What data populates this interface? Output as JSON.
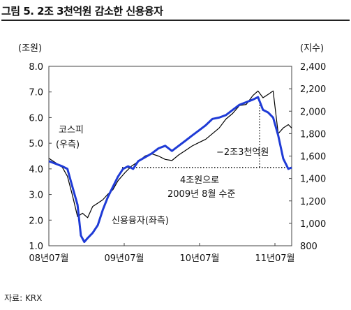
{
  "title": "그림 5. 2조 3천억원 감소한 신용융자",
  "source": "자료: KRX",
  "chart_data": {
    "type": "line",
    "left_axis": {
      "label": "(조원)",
      "ticks": [
        "8.0",
        "7.0",
        "6.0",
        "5.0",
        "4.0",
        "3.0",
        "2.0",
        "1.0"
      ],
      "ylim": [
        1.0,
        8.0
      ]
    },
    "right_axis": {
      "label": "(지수)",
      "ticks": [
        "2,400",
        "2,200",
        "2,000",
        "1,800",
        "1,600",
        "1,400",
        "1,200",
        "1,000",
        "800"
      ],
      "ylim": [
        800,
        2400
      ]
    },
    "x_ticks": [
      "08년07월",
      "09년07월",
      "10년07월",
      "11년07월"
    ],
    "series": [
      {
        "name": "코스피 (우축)",
        "axis": "right",
        "color": "#000000",
        "points": [
          [
            0,
            1580
          ],
          [
            4,
            1540
          ],
          [
            8,
            1500
          ],
          [
            11,
            1420
          ],
          [
            14,
            1250
          ],
          [
            17,
            1060
          ],
          [
            20,
            1090
          ],
          [
            23,
            1050
          ],
          [
            26,
            1150
          ],
          [
            29,
            1180
          ],
          [
            32,
            1210
          ],
          [
            35,
            1260
          ],
          [
            38,
            1300
          ],
          [
            41,
            1380
          ],
          [
            45,
            1450
          ],
          [
            49,
            1510
          ],
          [
            53,
            1550
          ],
          [
            57,
            1600
          ],
          [
            61,
            1620
          ],
          [
            65,
            1600
          ],
          [
            69,
            1570
          ],
          [
            73,
            1560
          ],
          [
            77,
            1610
          ],
          [
            81,
            1650
          ],
          [
            85,
            1690
          ],
          [
            89,
            1720
          ],
          [
            93,
            1750
          ],
          [
            97,
            1800
          ],
          [
            101,
            1850
          ],
          [
            105,
            1930
          ],
          [
            109,
            1980
          ],
          [
            113,
            2050
          ],
          [
            117,
            2060
          ],
          [
            121,
            2140
          ],
          [
            124,
            2180
          ],
          [
            127,
            2120
          ],
          [
            130,
            2150
          ],
          [
            133,
            2180
          ],
          [
            136,
            1800
          ],
          [
            139,
            1850
          ],
          [
            142,
            1880
          ],
          [
            144,
            1850
          ]
        ]
      },
      {
        "name": "신용융자 (좌측)",
        "axis": "left",
        "color": "#1f3bd6",
        "points": [
          [
            0,
            4.3
          ],
          [
            4,
            4.2
          ],
          [
            8,
            4.1
          ],
          [
            11,
            4.0
          ],
          [
            14,
            3.3
          ],
          [
            17,
            2.6
          ],
          [
            19,
            1.4
          ],
          [
            21,
            1.15
          ],
          [
            23,
            1.3
          ],
          [
            26,
            1.5
          ],
          [
            29,
            1.8
          ],
          [
            32,
            2.4
          ],
          [
            35,
            2.9
          ],
          [
            38,
            3.3
          ],
          [
            41,
            3.7
          ],
          [
            44,
            4.0
          ],
          [
            47,
            4.1
          ],
          [
            50,
            4.0
          ],
          [
            53,
            4.3
          ],
          [
            57,
            4.45
          ],
          [
            61,
            4.6
          ],
          [
            65,
            4.8
          ],
          [
            69,
            4.9
          ],
          [
            73,
            4.7
          ],
          [
            77,
            4.9
          ],
          [
            81,
            5.1
          ],
          [
            85,
            5.3
          ],
          [
            89,
            5.5
          ],
          [
            93,
            5.7
          ],
          [
            97,
            5.95
          ],
          [
            101,
            6.0
          ],
          [
            105,
            6.1
          ],
          [
            109,
            6.3
          ],
          [
            113,
            6.5
          ],
          [
            117,
            6.6
          ],
          [
            121,
            6.7
          ],
          [
            124,
            6.8
          ],
          [
            127,
            6.3
          ],
          [
            130,
            6.2
          ],
          [
            133,
            6.0
          ],
          [
            136,
            5.3
          ],
          [
            139,
            4.4
          ],
          [
            142,
            4.0
          ],
          [
            144,
            4.05
          ]
        ]
      }
    ],
    "annotations": [
      {
        "text": "코스피",
        "sub": "(우측)"
      },
      {
        "text": "신용융자(좌측)"
      },
      {
        "text": "−2조3천억원"
      },
      {
        "text": "4조원으로",
        "sub": "2009년 8월 수준"
      }
    ]
  }
}
